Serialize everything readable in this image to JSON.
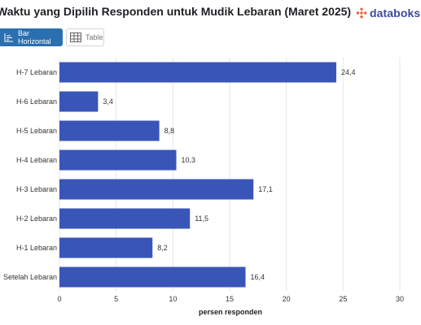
{
  "header": {
    "title": "Waktu yang Dipilih Responden untuk Mudik Lebaran (Maret 2025)",
    "brand": "databoks",
    "brand_color": "#e8643c"
  },
  "tabs": [
    {
      "label": "Bar Horizontal",
      "icon": "bar-chart-icon",
      "active": true
    },
    {
      "label": "Table",
      "icon": "table-icon",
      "active": false
    }
  ],
  "chart_data": {
    "type": "bar",
    "orientation": "horizontal",
    "categories": [
      "H-7 Lebaran",
      "H-6 Lebaran",
      "H-5 Lebaran",
      "H-4 Lebaran",
      "H-3 Lebaran",
      "H-2 Lebaran",
      "H-1 Lebaran",
      "Setelah Lebaran"
    ],
    "values": [
      24.4,
      3.4,
      8.8,
      10.3,
      17.1,
      11.5,
      8.2,
      16.4
    ],
    "value_labels": [
      "24,4",
      "3,4",
      "8,8",
      "10,3",
      "17,1",
      "11,5",
      "8,2",
      "16,4"
    ],
    "xlabel": "persen responden",
    "xlim": [
      0,
      30
    ],
    "xticks": [
      0,
      5,
      10,
      15,
      20,
      25,
      30
    ],
    "grid": true,
    "bar_color": "#3a55b8"
  }
}
